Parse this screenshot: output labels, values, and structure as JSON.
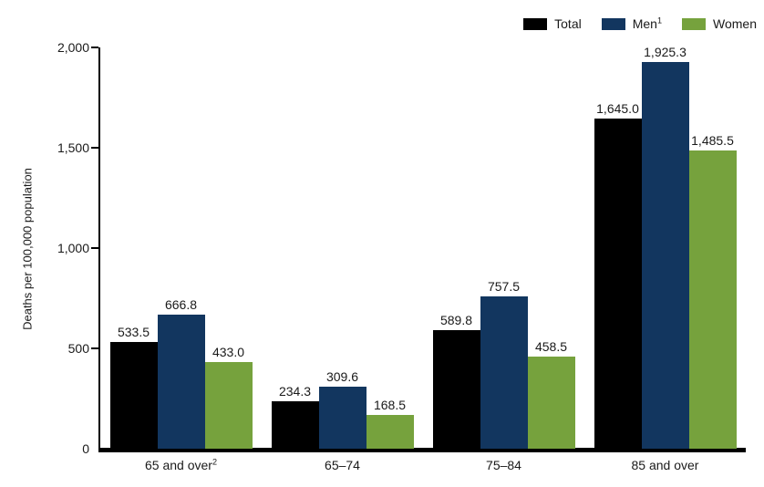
{
  "figure": {
    "background": "#ffffff",
    "text_color": "#1a1a1a"
  },
  "chart_data": {
    "type": "bar",
    "title": "",
    "xlabel": "",
    "ylabel": "Deaths per 100,000 population",
    "ylim": [
      0,
      2000
    ],
    "grid": false,
    "legend_position": "top-right",
    "yticks": [
      {
        "value": 0,
        "label": "0"
      },
      {
        "value": 500,
        "label": "500"
      },
      {
        "value": 1000,
        "label": "1,000"
      },
      {
        "value": 1500,
        "label": "1,500"
      },
      {
        "value": 2000,
        "label": "2,000"
      }
    ],
    "categories": [
      {
        "text": "65 and over",
        "sup": "2"
      },
      {
        "text": "65–74",
        "sup": ""
      },
      {
        "text": "75–84",
        "sup": ""
      },
      {
        "text": "85 and over",
        "sup": ""
      }
    ],
    "series": [
      {
        "key": "total",
        "name": "Total",
        "sup": "",
        "color": "#000000",
        "values": [
          533.5,
          234.3,
          589.8,
          1645.0
        ],
        "value_labels": [
          "533.5",
          "234.3",
          "589.8",
          "1,645.0"
        ]
      },
      {
        "key": "men",
        "name": "Men",
        "sup": "1",
        "color": "#12365f",
        "values": [
          666.8,
          309.6,
          757.5,
          1925.3
        ],
        "value_labels": [
          "666.8",
          "309.6",
          "757.5",
          "1,925.3"
        ]
      },
      {
        "key": "women",
        "name": "Women",
        "sup": "",
        "color": "#76a23d",
        "values": [
          433.0,
          168.5,
          458.5,
          1485.5
        ],
        "value_labels": [
          "433.0",
          "168.5",
          "458.5",
          "1,485.5"
        ]
      }
    ]
  }
}
